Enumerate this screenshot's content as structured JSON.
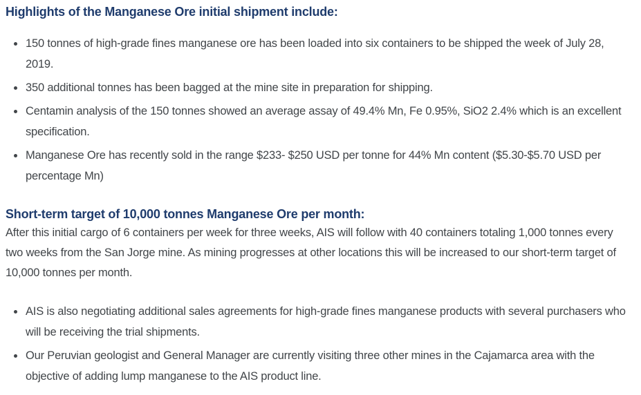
{
  "colors": {
    "heading": "#1f3c6d",
    "body_text": "#414549",
    "background": "#ffffff"
  },
  "section1": {
    "heading": "Highlights of the Manganese Ore initial shipment include:",
    "bullets": [
      "150 tonnes of high-grade fines manganese ore has been loaded into six containers to be shipped the week of July 28, 2019.",
      "350 additional tonnes has been bagged at the mine site in preparation for shipping.",
      "Centamin analysis of the 150 tonnes showed an average assay of 49.4% Mn, Fe 0.95%, SiO2 2.4% which is an excellent specification.",
      "Manganese Ore has recently sold in the range $233- $250 USD per tonne for 44% Mn content ($5.30-$5.70 USD per percentage Mn)"
    ]
  },
  "section2": {
    "heading": "Short-term target of 10,000 tonnes Manganese Ore per month:",
    "paragraph": "After this initial cargo of 6 containers per week for three weeks, AIS will follow with 40 containers totaling 1,000 tonnes every two weeks from the San Jorge mine. As mining progresses at other locations this will be increased to our short-term target of 10,000 tonnes per month.",
    "bullets": [
      "AIS is also negotiating additional sales agreements for high-grade fines manganese products with several purchasers who will be receiving the trial shipments.",
      "Our Peruvian geologist and General Manager are currently visiting three other mines in the Cajamarca area with the objective of adding lump manganese to the AIS product line."
    ]
  }
}
